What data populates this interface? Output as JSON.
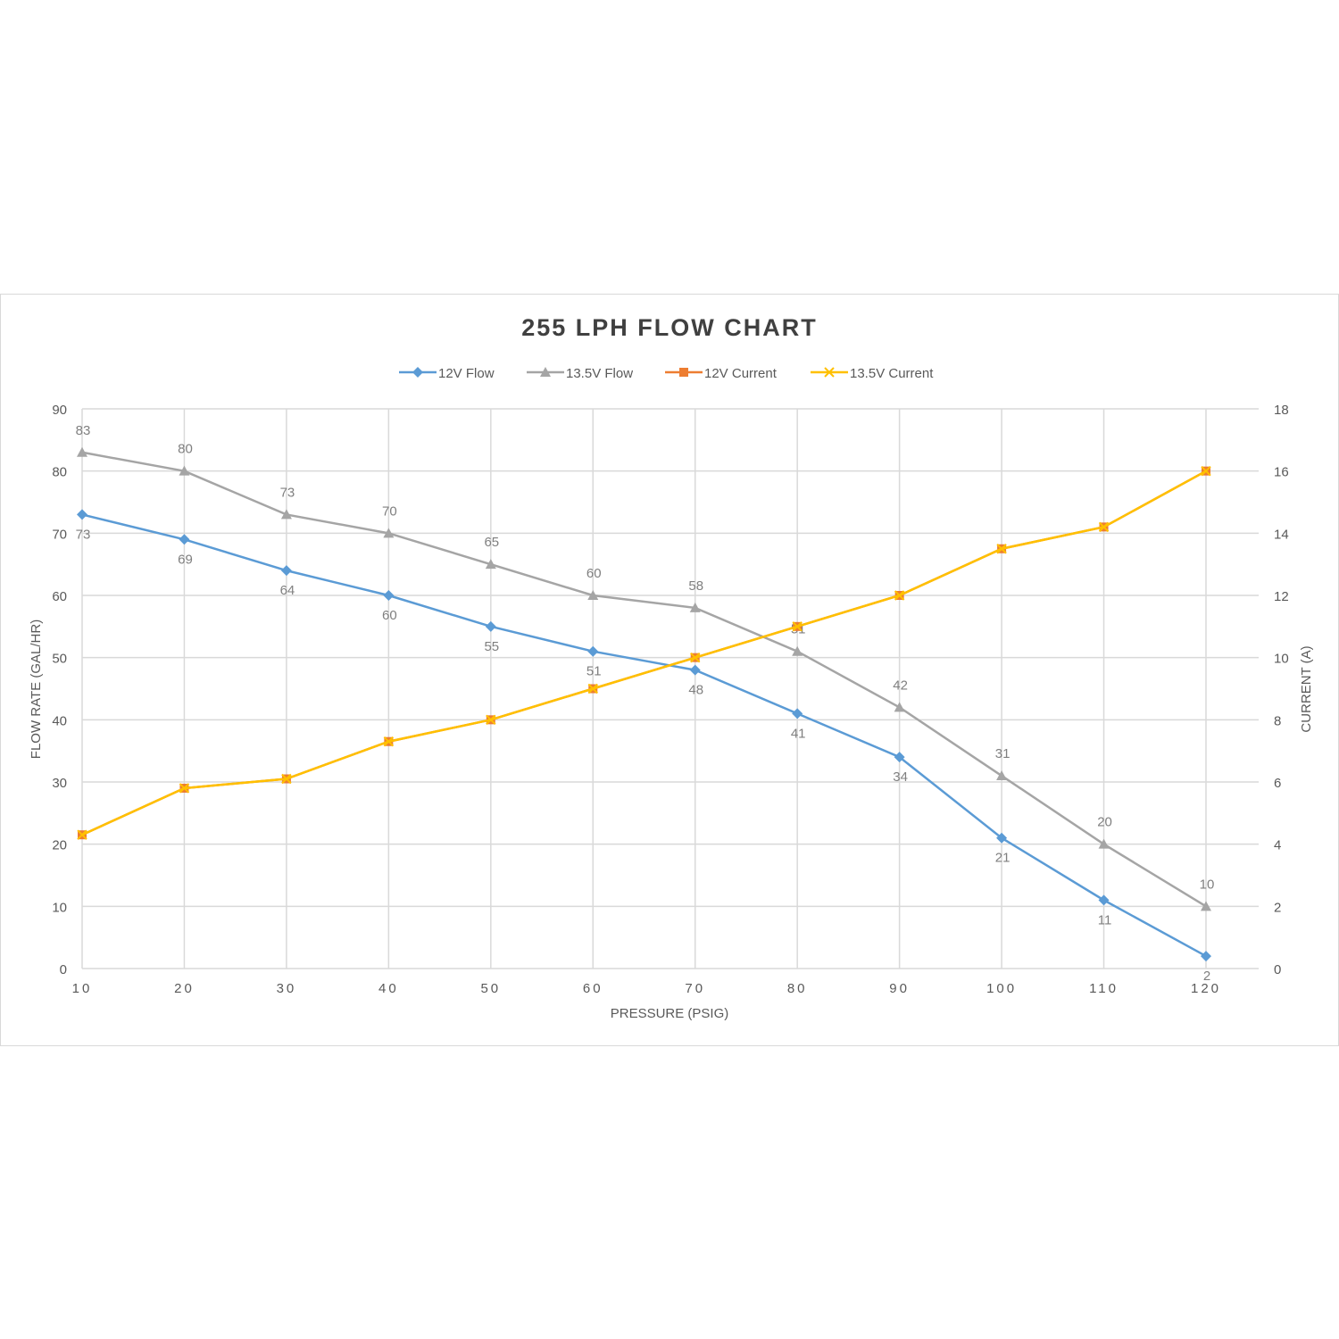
{
  "chart_data": {
    "type": "line",
    "title": "255 LPH FLOW CHART",
    "xlabel": "PRESSURE (PSIG)",
    "ylabel": "FLOW RATE (GAL/HR)",
    "y2label": "CURRENT (A)",
    "x": [
      10,
      20,
      30,
      40,
      50,
      60,
      70,
      80,
      90,
      100,
      110,
      120
    ],
    "ylim": [
      0,
      90
    ],
    "y2lim": [
      0,
      18
    ],
    "yticks": [
      0,
      10,
      20,
      30,
      40,
      50,
      60,
      70,
      80,
      90
    ],
    "y2ticks": [
      0,
      2,
      4,
      6,
      8,
      10,
      12,
      14,
      16,
      18
    ],
    "grid": true,
    "legend_position": "top",
    "series": [
      {
        "name": "12V Flow",
        "axis": "left",
        "color": "#5b9bd5",
        "marker": "diamond",
        "labels": "below",
        "values": [
          73,
          69,
          64,
          60,
          55,
          51,
          48,
          41,
          34,
          21,
          11,
          2
        ]
      },
      {
        "name": "13.5V Flow",
        "axis": "left",
        "color": "#a5a5a5",
        "marker": "triangle",
        "labels": "above",
        "values": [
          83,
          80,
          73,
          70,
          65,
          60,
          58,
          51,
          42,
          31,
          20,
          10
        ]
      },
      {
        "name": "12V Current",
        "axis": "right",
        "color": "#ed7d31",
        "marker": "square",
        "values": [
          4.3,
          5.8,
          6.1,
          7.3,
          8,
          9,
          10,
          11,
          12,
          13.5,
          14.2,
          16
        ]
      },
      {
        "name": "13.5V Current",
        "axis": "right",
        "color": "#ffc000",
        "marker": "x",
        "values": [
          4.3,
          5.8,
          6.1,
          7.3,
          8,
          9,
          10,
          11,
          12,
          13.5,
          14.2,
          16
        ]
      }
    ]
  }
}
